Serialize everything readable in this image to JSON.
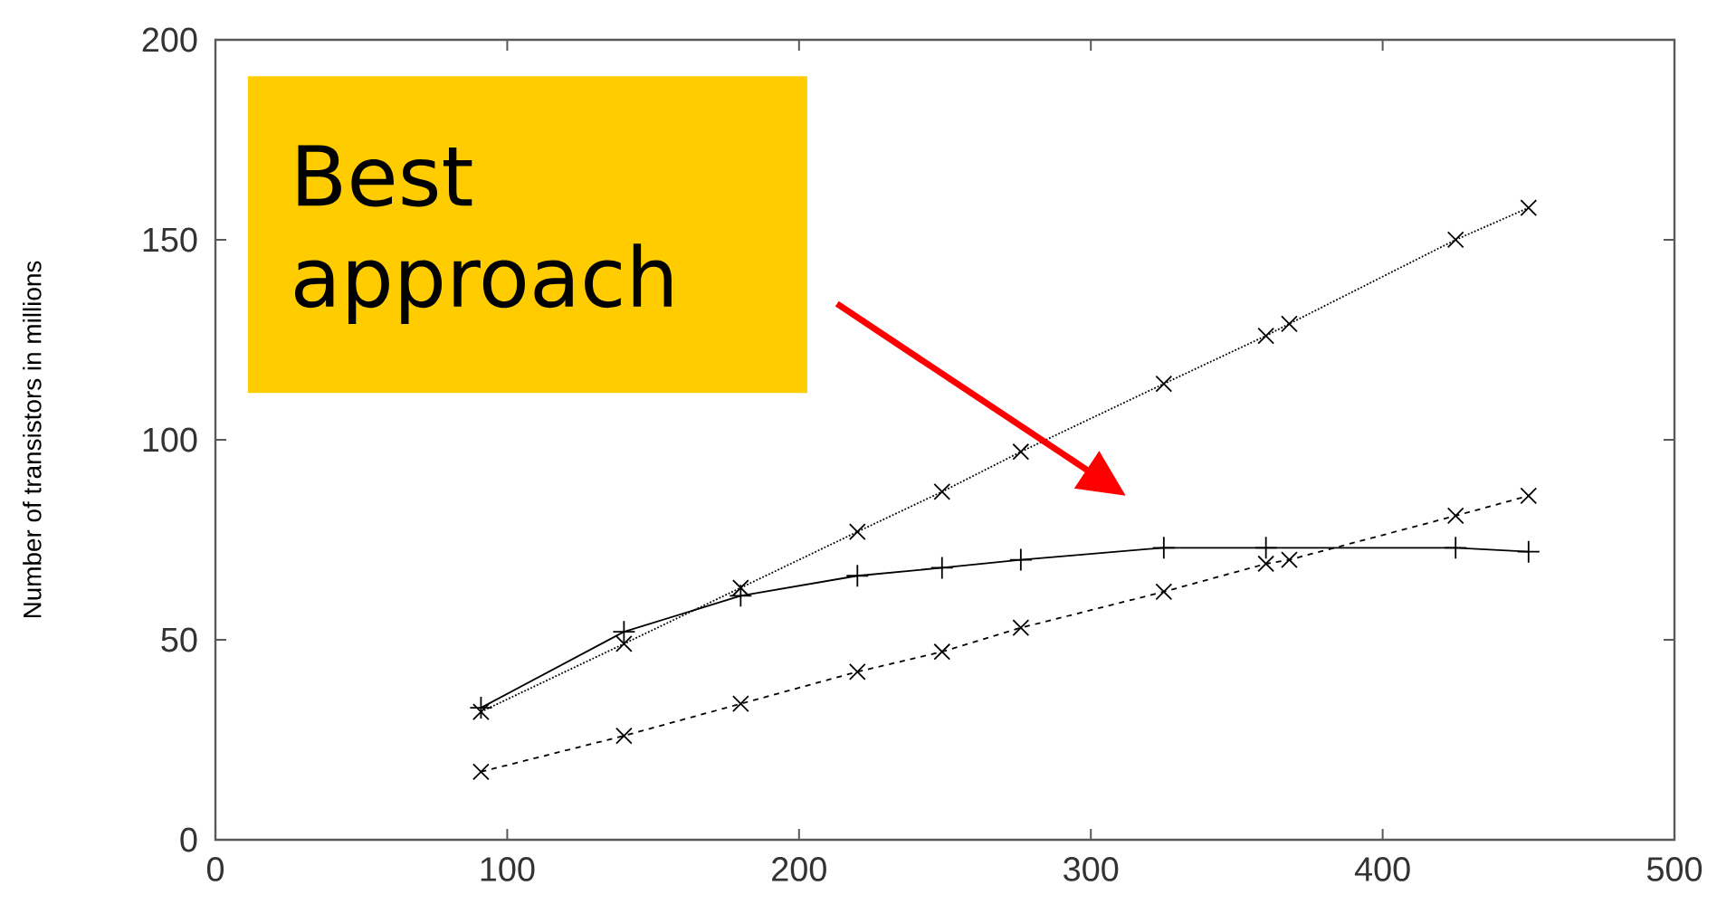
{
  "chart_data": {
    "type": "line",
    "ylabel": "Number of transistors in millions",
    "xlim": [
      0,
      500
    ],
    "xticks": [
      0,
      100,
      200,
      300,
      400,
      500
    ],
    "ylim": [
      0,
      200
    ],
    "yticks": [
      0,
      50,
      100,
      150,
      200
    ],
    "annotations": [
      "Best approach"
    ],
    "series": [
      {
        "color": "#000000",
        "marker": "plus",
        "line_style": "solid",
        "x": [
          91,
          140,
          180,
          220,
          249,
          276,
          325,
          360,
          425,
          450
        ],
        "values": [
          33,
          52,
          61,
          66,
          68,
          70,
          73,
          73,
          73,
          72
        ]
      },
      {
        "color": "#000000",
        "marker": "cross",
        "line_style": "dotted",
        "x": [
          91,
          140,
          180,
          220,
          249,
          276,
          325,
          360,
          368,
          425,
          450
        ],
        "values": [
          32,
          49,
          63,
          77,
          87,
          97,
          114,
          126,
          129,
          150,
          158
        ]
      },
      {
        "color": "#000000",
        "marker": "cross",
        "line_style": "dashed",
        "x": [
          91,
          140,
          180,
          220,
          249,
          276,
          325,
          360,
          368,
          425,
          450
        ],
        "values": [
          17,
          26,
          34,
          42,
          47,
          53,
          62,
          69,
          70,
          81,
          86
        ]
      }
    ]
  }
}
